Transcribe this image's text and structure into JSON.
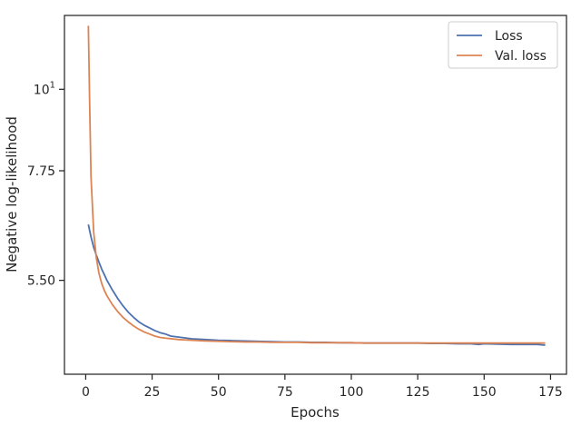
{
  "chart_data": {
    "type": "line",
    "title": "",
    "xlabel": "Epochs",
    "ylabel": "Negative log-likelihood",
    "y_scale": "log",
    "xlim": [
      -8,
      181
    ],
    "ylim": [
      4.1,
      12.6
    ],
    "x_ticks": [
      0,
      25,
      50,
      75,
      100,
      125,
      150,
      175
    ],
    "y_ticks": [
      {
        "value": 5.5,
        "label": "5.50"
      },
      {
        "value": 7.75,
        "label": "7.75"
      },
      {
        "value": 10,
        "label": "10",
        "superscript": "1"
      }
    ],
    "grid": false,
    "legend": "top-right",
    "colors": {
      "loss": "#4c72b0",
      "val_loss": "#dd8452"
    },
    "series": [
      {
        "name": "Loss",
        "key": "loss",
        "color": "#4c72b0",
        "x": [
          1,
          2,
          3,
          4,
          5,
          6,
          7,
          8,
          9,
          10,
          12,
          14,
          16,
          18,
          20,
          22,
          24,
          26,
          28,
          30,
          32,
          34,
          36,
          38,
          40,
          45,
          50,
          55,
          60,
          65,
          70,
          75,
          80,
          85,
          90,
          95,
          100,
          105,
          110,
          115,
          120,
          125,
          130,
          135,
          140,
          145,
          148,
          150,
          155,
          160,
          165,
          170,
          173
        ],
        "y": [
          6.55,
          6.3,
          6.1,
          5.95,
          5.82,
          5.7,
          5.6,
          5.5,
          5.42,
          5.34,
          5.2,
          5.08,
          4.98,
          4.9,
          4.83,
          4.78,
          4.74,
          4.7,
          4.67,
          4.65,
          4.62,
          4.61,
          4.6,
          4.59,
          4.58,
          4.57,
          4.56,
          4.555,
          4.55,
          4.545,
          4.54,
          4.535,
          4.535,
          4.53,
          4.53,
          4.525,
          4.525,
          4.52,
          4.52,
          4.52,
          4.52,
          4.52,
          4.515,
          4.515,
          4.51,
          4.51,
          4.5,
          4.51,
          4.505,
          4.5,
          4.5,
          4.5,
          4.49
        ]
      },
      {
        "name": "Val. loss",
        "key": "val_loss",
        "color": "#dd8452",
        "x": [
          1,
          1.5,
          2,
          3,
          4,
          5,
          6,
          7,
          8,
          10,
          12,
          14,
          16,
          18,
          20,
          22,
          24,
          26,
          28,
          30,
          35,
          40,
          45,
          50,
          55,
          60,
          65,
          70,
          75,
          80,
          85,
          90,
          95,
          100,
          105,
          110,
          115,
          120,
          125,
          130,
          135,
          140,
          145,
          150,
          155,
          160,
          165,
          170,
          173
        ],
        "y": [
          12.2,
          9.5,
          7.6,
          6.4,
          5.9,
          5.62,
          5.45,
          5.33,
          5.24,
          5.1,
          4.99,
          4.9,
          4.83,
          4.77,
          4.72,
          4.68,
          4.65,
          4.62,
          4.6,
          4.59,
          4.57,
          4.56,
          4.55,
          4.545,
          4.54,
          4.535,
          4.535,
          4.53,
          4.53,
          4.53,
          4.525,
          4.525,
          4.525,
          4.525,
          4.52,
          4.52,
          4.52,
          4.52,
          4.52,
          4.52,
          4.52,
          4.52,
          4.52,
          4.52,
          4.52,
          4.52,
          4.52,
          4.52,
          4.52
        ]
      }
    ]
  }
}
